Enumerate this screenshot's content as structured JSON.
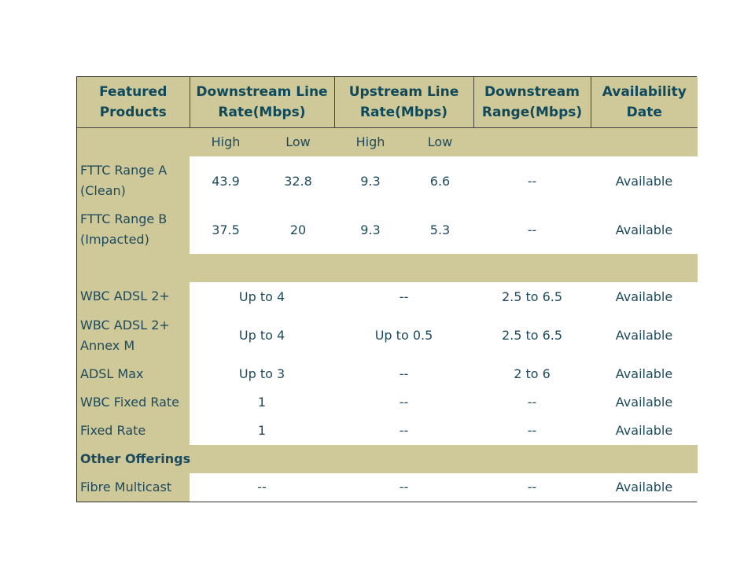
{
  "headers": [
    "Featured\nProducts",
    "Downstream Line\nRate(Mbps)",
    "Upstream Line\nRate(Mbps)",
    "Downstream\nRange(Mbps)",
    "Availability\nDate"
  ],
  "subheaders": [
    "High",
    "Low",
    "High",
    "Low"
  ],
  "fttc_rows": [
    {
      "product": "FTTC Range A\n(Clean)",
      "down_high": "43.9",
      "down_low": "32.8",
      "up_high": "9.3",
      "up_low": "6.6",
      "range": "--",
      "availability": "Available"
    },
    {
      "product": "FTTC Range B\n(Impacted)",
      "down_high": "37.5",
      "down_low": "20",
      "up_high": "9.3",
      "up_low": "5.3",
      "range": "--",
      "availability": "Available"
    }
  ],
  "wbc_rows": [
    {
      "product": "WBC ADSL 2+",
      "down": "Up to 4",
      "up": "--",
      "range": "2.5 to 6.5",
      "availability": "Available"
    },
    {
      "product": "WBC ADSL 2+\nAnnex M",
      "down": "Up to 4",
      "up": "Up to 0.5",
      "range": "2.5 to 6.5",
      "availability": "Available"
    },
    {
      "product": "ADSL Max",
      "down": "Up to 3",
      "up": "--",
      "range": "2 to 6",
      "availability": "Available"
    },
    {
      "product": "WBC Fixed Rate",
      "down": "1",
      "up": "--",
      "range": "--",
      "availability": "Available"
    },
    {
      "product": "Fixed Rate",
      "down": "1",
      "up": "--",
      "range": "--",
      "availability": "Available"
    }
  ],
  "other_section_label": "Other Offerings",
  "other_rows": [
    {
      "product": "Fibre Multicast",
      "down": "--",
      "up": "--",
      "range": "--",
      "availability": "Available"
    }
  ]
}
